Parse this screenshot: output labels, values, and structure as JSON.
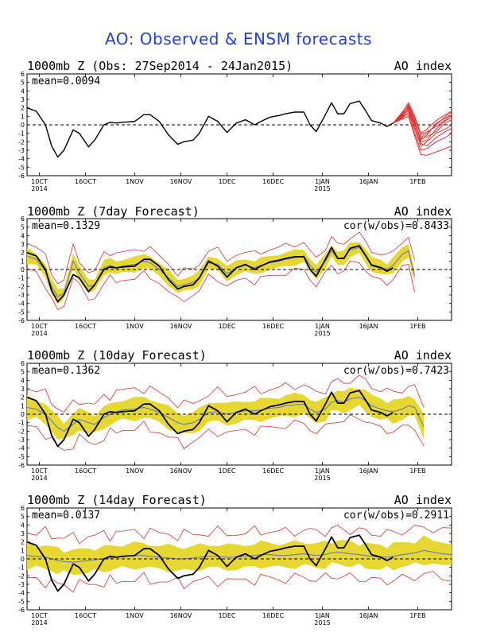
{
  "title": "AO: Observed & ENSM forecasts",
  "colors": {
    "observed": "#000000",
    "ensemble_members": "#e83030",
    "ensemble_envelope": "#e03030",
    "ensemble_spread": "#e6d830",
    "ensemble_mean": "#5a6fd0",
    "title": "#1f3fe8"
  },
  "chart_data": [
    {
      "type": "line",
      "panel_title": "1000mb Z (Obs: 27Sep2014 - 24Jan2015)",
      "index_label": "AO index",
      "mean_label": "mean=0.0094",
      "cor_label": "",
      "x_tick_labels": [
        "10CT\n2014",
        "16OCT",
        "1NOV",
        "16NOV",
        "1DEC",
        "16DEC",
        "1JAN\n2015",
        "16JAN",
        "1FEB"
      ],
      "x_tick_days": [
        4,
        19,
        35,
        50,
        65,
        80,
        96,
        111,
        127
      ],
      "y_ticks": [
        6,
        5,
        4,
        3,
        2,
        1,
        0,
        -1,
        -2,
        -3,
        -4,
        -5,
        -6
      ],
      "ylim": [
        -6,
        6
      ],
      "xlim_days": [
        0,
        138
      ],
      "observed": {
        "days": [
          0,
          3,
          6,
          8,
          10,
          12,
          15,
          17,
          20,
          22,
          25,
          27,
          29,
          31,
          35,
          38,
          40,
          43,
          46,
          49,
          51,
          54,
          56,
          59,
          62,
          65,
          68,
          71,
          74,
          76,
          79,
          82,
          84,
          87,
          90,
          92,
          94,
          97,
          99,
          101,
          103,
          105,
          108,
          110,
          112,
          115,
          117,
          119
        ],
        "values": [
          2.0,
          1.6,
          0.0,
          -2.5,
          -3.8,
          -3.0,
          -0.6,
          -1.0,
          -2.6,
          -1.8,
          0.0,
          0.3,
          0.2,
          0.3,
          0.4,
          1.2,
          1.2,
          0.4,
          -1.2,
          -2.3,
          -2.0,
          -1.8,
          -1.0,
          1.0,
          0.4,
          -0.9,
          0.2,
          0.6,
          0.0,
          0.4,
          0.9,
          1.1,
          1.3,
          1.5,
          1.5,
          0.0,
          -0.8,
          1.2,
          2.6,
          1.3,
          1.3,
          2.5,
          2.8,
          1.7,
          0.5,
          0.2,
          -0.2,
          0.2
        ]
      },
      "ensemble_members": {
        "start_day": 119,
        "days": [
          119,
          122,
          124,
          126,
          128,
          130,
          133,
          136,
          138
        ],
        "members": [
          [
            0.2,
            1.0,
            1.8,
            0.0,
            -1.5,
            -1.0,
            0.0,
            1.0,
            1.5
          ],
          [
            0.2,
            1.2,
            2.2,
            0.5,
            -2.0,
            -1.8,
            -0.5,
            0.5,
            0.8
          ],
          [
            0.2,
            0.8,
            1.5,
            -0.5,
            -2.5,
            -2.0,
            -1.0,
            -0.5,
            0.0
          ],
          [
            0.2,
            1.5,
            2.6,
            1.0,
            -1.0,
            -0.5,
            0.5,
            1.2,
            1.6
          ],
          [
            0.2,
            1.0,
            1.2,
            -1.0,
            -3.0,
            -2.8,
            -2.0,
            -1.5,
            -1.0
          ],
          [
            0.2,
            0.9,
            2.0,
            0.2,
            -1.8,
            -1.2,
            0.2,
            0.8,
            1.2
          ],
          [
            0.2,
            1.3,
            1.7,
            -0.2,
            -2.2,
            -2.5,
            -1.5,
            -0.8,
            -0.4
          ],
          [
            0.2,
            1.1,
            2.4,
            0.8,
            -1.2,
            -0.8,
            -0.2,
            0.6,
            1.1
          ],
          [
            0.2,
            0.7,
            1.0,
            -1.3,
            -3.5,
            -3.6,
            -3.2,
            -2.8,
            -2.5
          ],
          [
            0.2,
            1.4,
            2.1,
            0.3,
            -1.6,
            -1.4,
            -0.8,
            0.2,
            0.6
          ]
        ]
      }
    },
    {
      "type": "line",
      "panel_title": "1000mb Z (7day Forecast)",
      "index_label": "AO index",
      "mean_label": "mean=0.1329",
      "cor_label": "cor(w/obs)=0.8433",
      "x_tick_labels": [
        "10CT\n2014",
        "16OCT",
        "1NOV",
        "16NOV",
        "1DEC",
        "16DEC",
        "1JAN\n2015",
        "16JAN",
        "1FEB"
      ],
      "x_tick_days": [
        4,
        19,
        35,
        50,
        65,
        80,
        96,
        111,
        127
      ],
      "y_ticks": [
        6,
        5,
        4,
        3,
        2,
        1,
        0,
        -1,
        -2,
        -3,
        -4,
        -5,
        -6
      ],
      "ylim": [
        -6,
        6
      ],
      "xlim_days": [
        0,
        138
      ],
      "forecast_days": [
        0,
        3,
        6,
        8,
        10,
        12,
        15,
        17,
        20,
        22,
        25,
        27,
        29,
        31,
        35,
        38,
        40,
        43,
        46,
        49,
        51,
        54,
        56,
        59,
        62,
        65,
        68,
        71,
        74,
        76,
        79,
        82,
        84,
        87,
        90,
        92,
        94,
        97,
        99,
        101,
        103,
        105,
        108,
        110,
        112,
        115,
        117,
        119,
        122,
        124,
        126
      ],
      "ensemble_mean": [
        1.6,
        1.2,
        -0.2,
        -2.0,
        -3.2,
        -2.8,
        1.0,
        -0.4,
        -2.0,
        -1.8,
        0.2,
        0.5,
        0.2,
        0.4,
        0.6,
        1.0,
        0.8,
        0.0,
        -1.0,
        -2.0,
        -1.8,
        -1.5,
        -1.0,
        0.8,
        0.6,
        -0.5,
        0.2,
        0.5,
        0.2,
        0.5,
        0.8,
        1.0,
        1.2,
        1.4,
        1.6,
        0.5,
        -0.3,
        1.0,
        2.2,
        1.3,
        1.4,
        2.3,
        2.6,
        1.6,
        0.6,
        0.3,
        0.0,
        0.5,
        1.8,
        2.2,
        -0.8
      ],
      "spread_half_width": 0.8,
      "envelope_half_width": 1.6,
      "observed": {
        "days": [
          0,
          3,
          6,
          8,
          10,
          12,
          15,
          17,
          20,
          22,
          25,
          27,
          29,
          31,
          35,
          38,
          40,
          43,
          46,
          49,
          51,
          54,
          56,
          59,
          62,
          65,
          68,
          71,
          74,
          76,
          79,
          82,
          84,
          87,
          90,
          92,
          94,
          97,
          99,
          101,
          103,
          105,
          108,
          110,
          112,
          115,
          117,
          119
        ],
        "values": [
          2.0,
          1.6,
          0.0,
          -2.5,
          -3.8,
          -3.0,
          -0.6,
          -1.0,
          -2.6,
          -1.8,
          0.0,
          0.3,
          0.2,
          0.3,
          0.4,
          1.2,
          1.2,
          0.4,
          -1.2,
          -2.3,
          -2.0,
          -1.8,
          -1.0,
          1.0,
          0.4,
          -0.9,
          0.2,
          0.6,
          0.0,
          0.4,
          0.9,
          1.1,
          1.3,
          1.5,
          1.5,
          0.0,
          -0.8,
          1.2,
          2.6,
          1.3,
          1.3,
          2.5,
          2.8,
          1.7,
          0.5,
          0.2,
          -0.2,
          0.2
        ]
      }
    },
    {
      "type": "line",
      "panel_title": "1000mb Z (10day Forecast)",
      "index_label": "AO index",
      "mean_label": "mean=0.1362",
      "cor_label": "cor(w/obs)=0.7423",
      "x_tick_labels": [
        "10CT\n2014",
        "16OCT",
        "1NOV",
        "16NOV",
        "1DEC",
        "16DEC",
        "1JAN\n2015",
        "16JAN",
        "1FEB"
      ],
      "x_tick_days": [
        4,
        19,
        35,
        50,
        65,
        80,
        96,
        111,
        127
      ],
      "y_ticks": [
        6,
        5,
        4,
        3,
        2,
        1,
        0,
        -1,
        -2,
        -3,
        -4,
        -5,
        -6
      ],
      "ylim": [
        -6,
        6
      ],
      "xlim_days": [
        0,
        138
      ],
      "forecast_days": [
        0,
        3,
        6,
        8,
        10,
        12,
        15,
        17,
        20,
        22,
        25,
        27,
        29,
        31,
        35,
        38,
        40,
        43,
        46,
        49,
        51,
        54,
        56,
        59,
        62,
        65,
        68,
        71,
        74,
        76,
        79,
        82,
        84,
        87,
        90,
        92,
        94,
        97,
        99,
        101,
        103,
        105,
        108,
        110,
        112,
        115,
        117,
        119,
        122,
        124,
        126,
        129
      ],
      "ensemble_mean": [
        0.8,
        0.6,
        0.0,
        -0.8,
        -1.6,
        -2.0,
        -1.2,
        -0.6,
        -1.0,
        -1.2,
        -0.4,
        0.0,
        0.3,
        0.5,
        0.6,
        0.8,
        0.6,
        0.2,
        -0.4,
        -1.0,
        -1.2,
        -1.0,
        -0.6,
        0.2,
        0.3,
        0.0,
        0.2,
        0.4,
        0.4,
        0.5,
        0.7,
        0.8,
        1.0,
        1.1,
        1.2,
        0.6,
        0.2,
        0.6,
        1.4,
        1.6,
        1.4,
        1.8,
        2.0,
        1.6,
        1.0,
        0.6,
        0.4,
        0.3,
        0.6,
        1.0,
        0.8,
        -1.5
      ],
      "spread_half_width": 1.2,
      "envelope_half_width": 2.3,
      "observed": {
        "days": [
          0,
          3,
          6,
          8,
          10,
          12,
          15,
          17,
          20,
          22,
          25,
          27,
          29,
          31,
          35,
          38,
          40,
          43,
          46,
          49,
          51,
          54,
          56,
          59,
          62,
          65,
          68,
          71,
          74,
          76,
          79,
          82,
          84,
          87,
          90,
          92,
          94,
          97,
          99,
          101,
          103,
          105,
          108,
          110,
          112,
          115,
          117,
          119
        ],
        "values": [
          2.0,
          1.6,
          0.0,
          -2.5,
          -3.8,
          -3.0,
          -0.6,
          -1.0,
          -2.6,
          -1.8,
          0.0,
          0.3,
          0.2,
          0.3,
          0.4,
          1.2,
          1.2,
          0.4,
          -1.2,
          -2.3,
          -2.0,
          -1.8,
          -1.0,
          1.0,
          0.4,
          -0.9,
          0.2,
          0.6,
          0.0,
          0.4,
          0.9,
          1.1,
          1.3,
          1.5,
          1.5,
          0.0,
          -0.8,
          1.2,
          2.6,
          1.3,
          1.3,
          2.5,
          2.8,
          1.7,
          0.5,
          0.2,
          -0.2,
          0.2
        ]
      }
    },
    {
      "type": "line",
      "panel_title": "1000mb Z (14day Forecast)",
      "index_label": "AO index",
      "mean_label": "mean=0.0137",
      "cor_label": "cor(w/obs)=0.2911",
      "x_tick_labels": [
        "10CT\n2014",
        "16OCT",
        "1NOV",
        "16NOV",
        "1DEC",
        "16DEC",
        "1JAN\n2015",
        "16JAN",
        "1FEB"
      ],
      "x_tick_days": [
        4,
        19,
        35,
        50,
        65,
        80,
        96,
        111,
        127
      ],
      "y_ticks": [
        6,
        5,
        4,
        3,
        2,
        1,
        0,
        -1,
        -2,
        -3,
        -4,
        -5,
        -6
      ],
      "ylim": [
        -6,
        6
      ],
      "xlim_days": [
        0,
        138
      ],
      "forecast_days": [
        0,
        3,
        6,
        8,
        10,
        12,
        15,
        17,
        20,
        22,
        25,
        27,
        29,
        31,
        35,
        38,
        40,
        43,
        46,
        49,
        51,
        54,
        56,
        59,
        62,
        65,
        68,
        71,
        74,
        76,
        79,
        82,
        84,
        87,
        90,
        92,
        94,
        97,
        99,
        101,
        103,
        105,
        108,
        110,
        112,
        115,
        117,
        119,
        122,
        124,
        126,
        129,
        132,
        135,
        138
      ],
      "ensemble_mean": [
        0.4,
        0.3,
        0.2,
        0.0,
        -0.2,
        -0.3,
        -0.4,
        -0.3,
        -0.2,
        -0.1,
        0.0,
        0.1,
        0.2,
        0.3,
        0.4,
        0.4,
        0.3,
        0.2,
        0.1,
        0.0,
        0.0,
        0.1,
        0.2,
        0.3,
        0.3,
        0.2,
        0.2,
        0.3,
        0.4,
        0.5,
        0.5,
        0.4,
        0.4,
        0.5,
        0.6,
        0.5,
        0.4,
        0.5,
        0.7,
        0.8,
        0.7,
        0.6,
        0.5,
        0.4,
        0.3,
        0.2,
        0.2,
        0.3,
        0.5,
        0.6,
        0.7,
        1.0,
        0.8,
        0.6,
        0.5
      ],
      "spread_half_width": 1.4,
      "envelope_half_width": 2.8,
      "observed": {
        "days": [
          0,
          3,
          6,
          8,
          10,
          12,
          15,
          17,
          20,
          22,
          25,
          27,
          29,
          31,
          35,
          38,
          40,
          43,
          46,
          49,
          51,
          54,
          56,
          59,
          62,
          65,
          68,
          71,
          74,
          76,
          79,
          82,
          84,
          87,
          90,
          92,
          94,
          97,
          99,
          101,
          103,
          105,
          108,
          110,
          112,
          115,
          117,
          119
        ],
        "values": [
          2.0,
          1.6,
          0.0,
          -2.5,
          -3.8,
          -3.0,
          -0.6,
          -1.0,
          -2.6,
          -1.8,
          0.0,
          0.3,
          0.2,
          0.3,
          0.4,
          1.2,
          1.2,
          0.4,
          -1.2,
          -2.3,
          -2.0,
          -1.8,
          -1.0,
          1.0,
          0.4,
          -0.9,
          0.2,
          0.6,
          0.0,
          0.4,
          0.9,
          1.1,
          1.3,
          1.5,
          1.5,
          0.0,
          -0.8,
          1.2,
          2.6,
          1.3,
          1.3,
          2.5,
          2.8,
          1.7,
          0.5,
          0.2,
          -0.2,
          0.2
        ]
      }
    }
  ]
}
